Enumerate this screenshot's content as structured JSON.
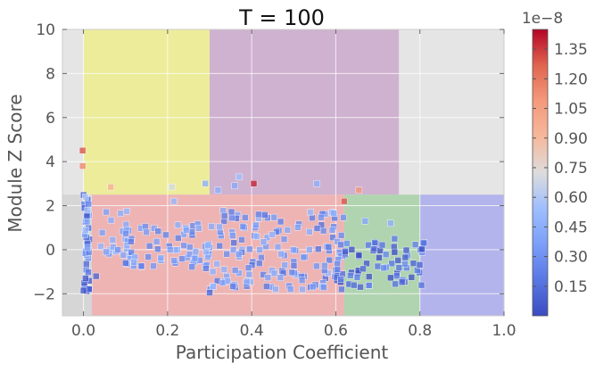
{
  "chart_data": {
    "type": "scatter",
    "title": "T = 100",
    "xlabel": "Participation Coefficient",
    "ylabel": "Module Z Score",
    "xlim": [
      -0.05,
      1.0
    ],
    "ylim": [
      -3.0,
      10.0
    ],
    "xticks": [
      0.0,
      0.2,
      0.4,
      0.6,
      0.8,
      1.0
    ],
    "xtick_labels": [
      "0.0",
      "0.2",
      "0.4",
      "0.6",
      "0.8",
      "1.0"
    ],
    "yticks": [
      -2,
      0,
      2,
      4,
      6,
      8,
      10
    ],
    "ytick_labels": [
      "−2",
      "0",
      "2",
      "4",
      "6",
      "8",
      "10"
    ],
    "grid": true,
    "background_color": "#e5e5e5",
    "regions": [
      {
        "x": [
          0.0,
          0.3
        ],
        "y": [
          2.5,
          10.0
        ],
        "color": "#ecec9b"
      },
      {
        "x": [
          0.3,
          0.75
        ],
        "y": [
          2.5,
          10.0
        ],
        "color": "#cfb2cf"
      },
      {
        "x": [
          -0.05,
          0.02
        ],
        "y": [
          -3.0,
          2.5
        ],
        "color": "#d6d6d6"
      },
      {
        "x": [
          0.02,
          0.62
        ],
        "y": [
          -3.0,
          2.5
        ],
        "color": "#eeb4b4"
      },
      {
        "x": [
          0.62,
          0.8
        ],
        "y": [
          -3.0,
          2.5
        ],
        "color": "#b0d4b0"
      },
      {
        "x": [
          0.8,
          1.0
        ],
        "y": [
          -3.0,
          2.5
        ],
        "color": "#b4b4ec"
      }
    ],
    "colorbar": {
      "colormap": "coolwarm",
      "range": [
        0.0,
        1.45
      ],
      "ticks": [
        0.15,
        0.3,
        0.45,
        0.6,
        0.75,
        0.9,
        1.05,
        1.2,
        1.35
      ],
      "tick_labels": [
        "0.15",
        "0.30",
        "0.45",
        "0.60",
        "0.75",
        "0.90",
        "1.05",
        "1.20",
        "1.35"
      ],
      "multiplier": "1e−8"
    },
    "highlight_points": [
      {
        "x": -0.002,
        "y": 4.5,
        "c": 1.3
      },
      {
        "x": -0.002,
        "y": 3.8,
        "c": 1.15
      },
      {
        "x": 0.065,
        "y": 2.85,
        "c": 0.95
      },
      {
        "x": 0.21,
        "y": 2.85,
        "c": 0.7
      },
      {
        "x": 0.405,
        "y": 3.0,
        "c": 1.4
      },
      {
        "x": 0.37,
        "y": 3.3,
        "c": 0.55
      },
      {
        "x": 0.29,
        "y": 3.0,
        "c": 0.45
      },
      {
        "x": 0.36,
        "y": 2.9,
        "c": 0.42
      },
      {
        "x": 0.32,
        "y": 2.7,
        "c": 0.45
      },
      {
        "x": 0.555,
        "y": 3.0,
        "c": 0.45
      },
      {
        "x": 0.62,
        "y": 2.2,
        "c": 1.3
      },
      {
        "x": 0.655,
        "y": 2.7,
        "c": 1.1
      },
      {
        "x": 0.215,
        "y": 2.2,
        "c": 0.5
      },
      {
        "x": 0.005,
        "y": 2.4,
        "c": 0.6
      },
      {
        "x": 0.01,
        "y": 1.8,
        "c": 0.55
      },
      {
        "x": 0.005,
        "y": 0.9,
        "c": 0.5
      },
      {
        "x": 0.01,
        "y": 0.1,
        "c": 0.35
      },
      {
        "x": 0.03,
        "y": -1.2,
        "c": 0.1
      },
      {
        "x": 0.3,
        "y": -1.95,
        "c": 0.12
      },
      {
        "x": 0.0,
        "y": -1.85,
        "c": 0.05
      },
      {
        "x": 0.005,
        "y": -1.3,
        "c": 0.05
      },
      {
        "x": 0.81,
        "y": 0.3,
        "c": 0.2
      },
      {
        "x": 0.74,
        "y": 0.5,
        "c": 0.2
      },
      {
        "x": 0.67,
        "y": 1.3,
        "c": 0.4
      },
      {
        "x": 0.73,
        "y": 1.2,
        "c": 0.45
      },
      {
        "x": 0.54,
        "y": 1.7,
        "c": 0.5
      },
      {
        "x": 0.245,
        "y": 0.9,
        "c": 0.4
      },
      {
        "x": 0.1,
        "y": -0.6,
        "c": 0.15
      }
    ],
    "clusters": [
      {
        "x": [
          0.0,
          0.015
        ],
        "y": [
          -1.9,
          2.6
        ],
        "n": 38,
        "c": [
          0.02,
          0.4
        ]
      },
      {
        "x": [
          0.03,
          0.12
        ],
        "y": [
          -0.3,
          1.9
        ],
        "n": 22,
        "c": [
          0.3,
          0.55
        ]
      },
      {
        "x": [
          0.1,
          0.3
        ],
        "y": [
          -0.8,
          1.2
        ],
        "n": 60,
        "c": [
          0.2,
          0.45
        ]
      },
      {
        "x": [
          0.28,
          0.62
        ],
        "y": [
          -1.8,
          1.8
        ],
        "n": 150,
        "c": [
          0.15,
          0.5
        ]
      },
      {
        "x": [
          0.6,
          0.81
        ],
        "y": [
          -1.7,
          0.4
        ],
        "n": 70,
        "c": [
          0.0,
          0.3
        ]
      }
    ]
  }
}
